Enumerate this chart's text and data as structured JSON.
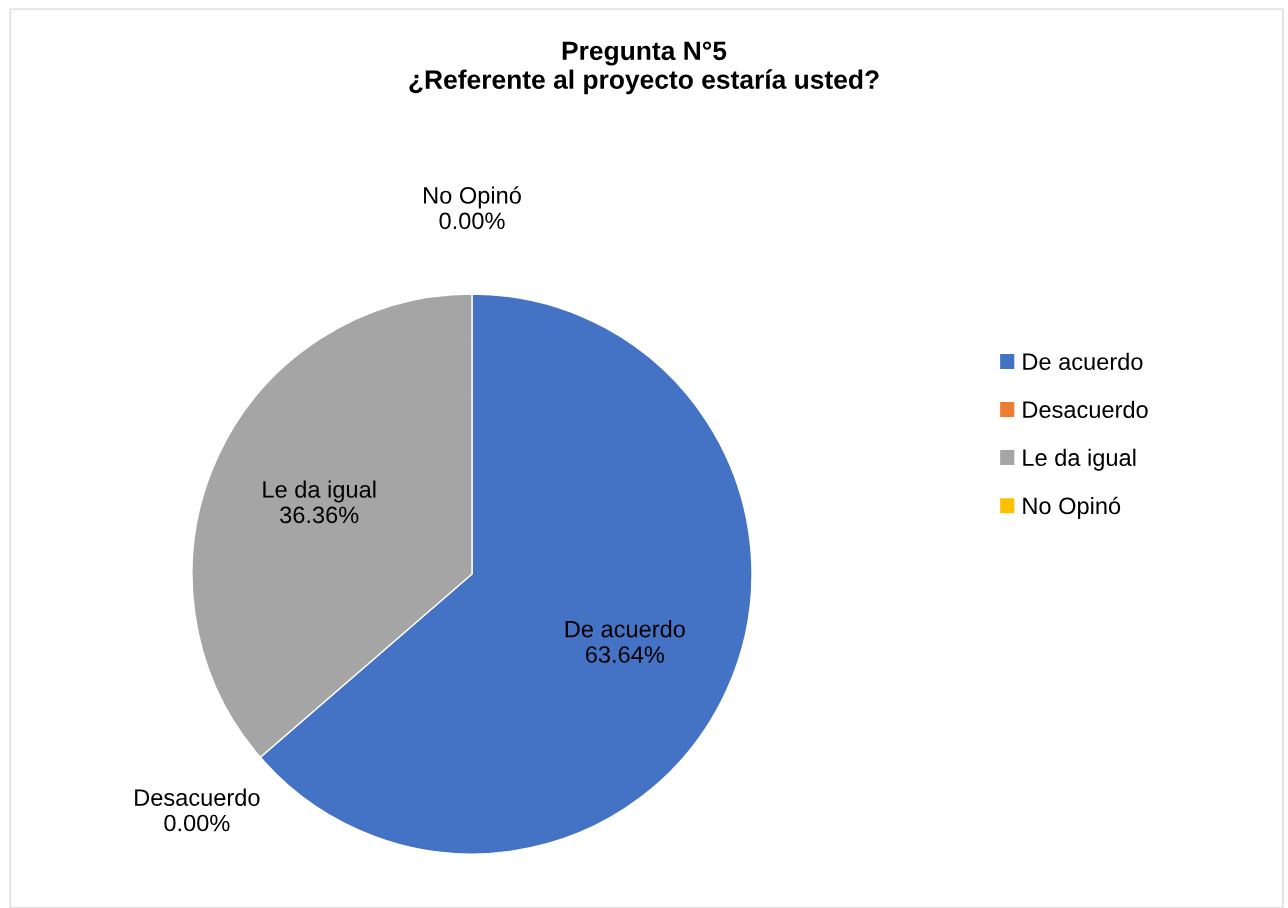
{
  "chart_data": {
    "type": "pie",
    "title": "Pregunta N°5\n¿Referente al proyecto estaría usted?",
    "categories": [
      "De acuerdo",
      "Desacuerdo",
      "Le da igual",
      "No Opinó"
    ],
    "values": [
      63.64,
      0,
      36.36,
      0
    ],
    "colors": [
      "#4472c4",
      "#ed7d31",
      "#a5a5a5",
      "#ffc000"
    ],
    "value_labels": [
      "63.64%",
      "0.00%",
      "36.36%",
      "0.00%"
    ],
    "legend": "right"
  }
}
